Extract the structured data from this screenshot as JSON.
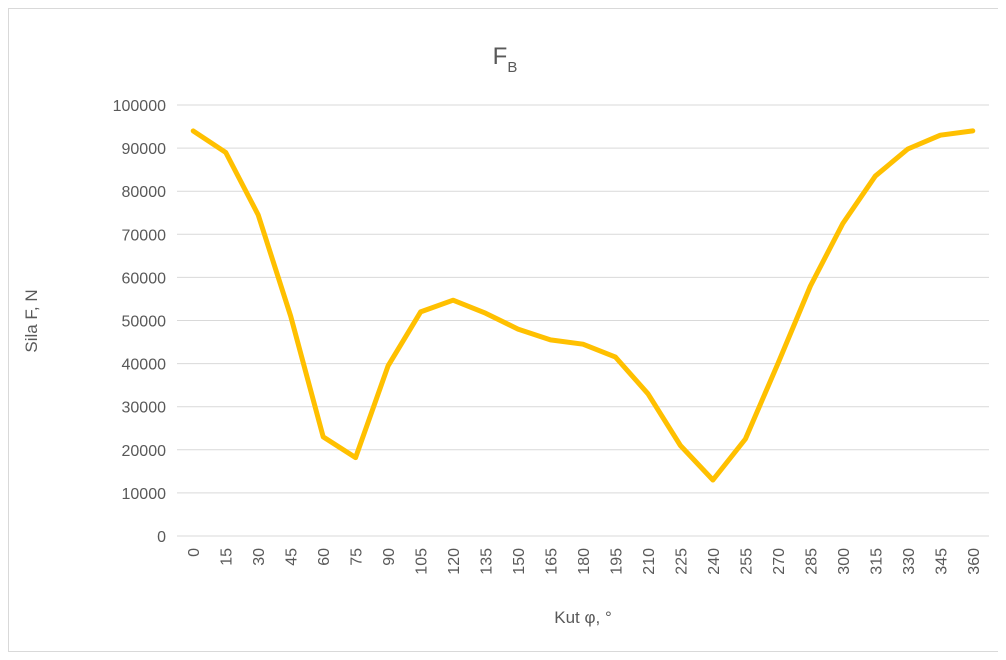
{
  "chart_data": {
    "type": "line",
    "title": "F",
    "title_subscript": "B",
    "xlabel": "Kut φ, °",
    "ylabel": "Sila F, N",
    "x": [
      0,
      15,
      30,
      45,
      60,
      75,
      90,
      105,
      120,
      135,
      150,
      165,
      180,
      195,
      210,
      225,
      240,
      255,
      270,
      285,
      300,
      315,
      330,
      345,
      360
    ],
    "ylim": [
      0,
      100000
    ],
    "ytick_step": 10000,
    "yticks": [
      "0",
      "10000",
      "20000",
      "30000",
      "40000",
      "50000",
      "60000",
      "70000",
      "80000",
      "90000",
      "100000"
    ],
    "grid": true,
    "legend": "none",
    "series": [
      {
        "color": "#FFC000",
        "values": [
          94000,
          89000,
          74500,
          51000,
          23000,
          18200,
          39500,
          52000,
          54700,
          51700,
          48000,
          45500,
          44500,
          41500,
          33000,
          21000,
          13000,
          22500,
          40000,
          58000,
          72500,
          83500,
          89800,
          93000,
          94000
        ]
      }
    ]
  }
}
